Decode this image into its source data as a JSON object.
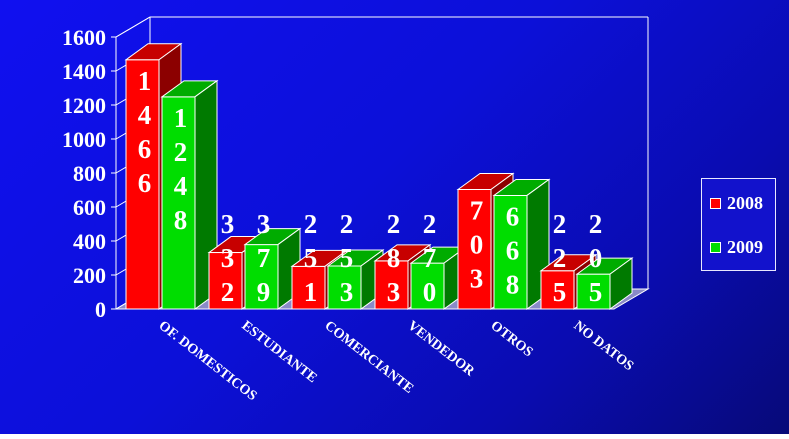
{
  "chart_data": {
    "type": "bar",
    "categories": [
      "OF. DOMESTICOS",
      "ESTUDIANTE",
      "COMERCIANTE",
      "VENDEDOR",
      "OTROS",
      "NO DATOS"
    ],
    "series": [
      {
        "name": "2008",
        "values": [
          1466,
          332,
          251,
          283,
          703,
          225
        ],
        "color": "#ff0000"
      },
      {
        "name": "2009",
        "values": [
          1248,
          379,
          253,
          270,
          668,
          205
        ],
        "color": "#00dd00"
      }
    ],
    "value_labels": [
      [
        "1466",
        "332",
        "251",
        "283",
        "703",
        "225"
      ],
      [
        "1248",
        "379",
        "253",
        "270",
        "668",
        "205"
      ]
    ],
    "yticks": [
      "0",
      "200",
      "400",
      "600",
      "800",
      "1000",
      "1200",
      "1400",
      "1600"
    ],
    "ylim": [
      0,
      1600
    ],
    "grid": false,
    "legend_position": "right",
    "background": "#0c10d8"
  }
}
